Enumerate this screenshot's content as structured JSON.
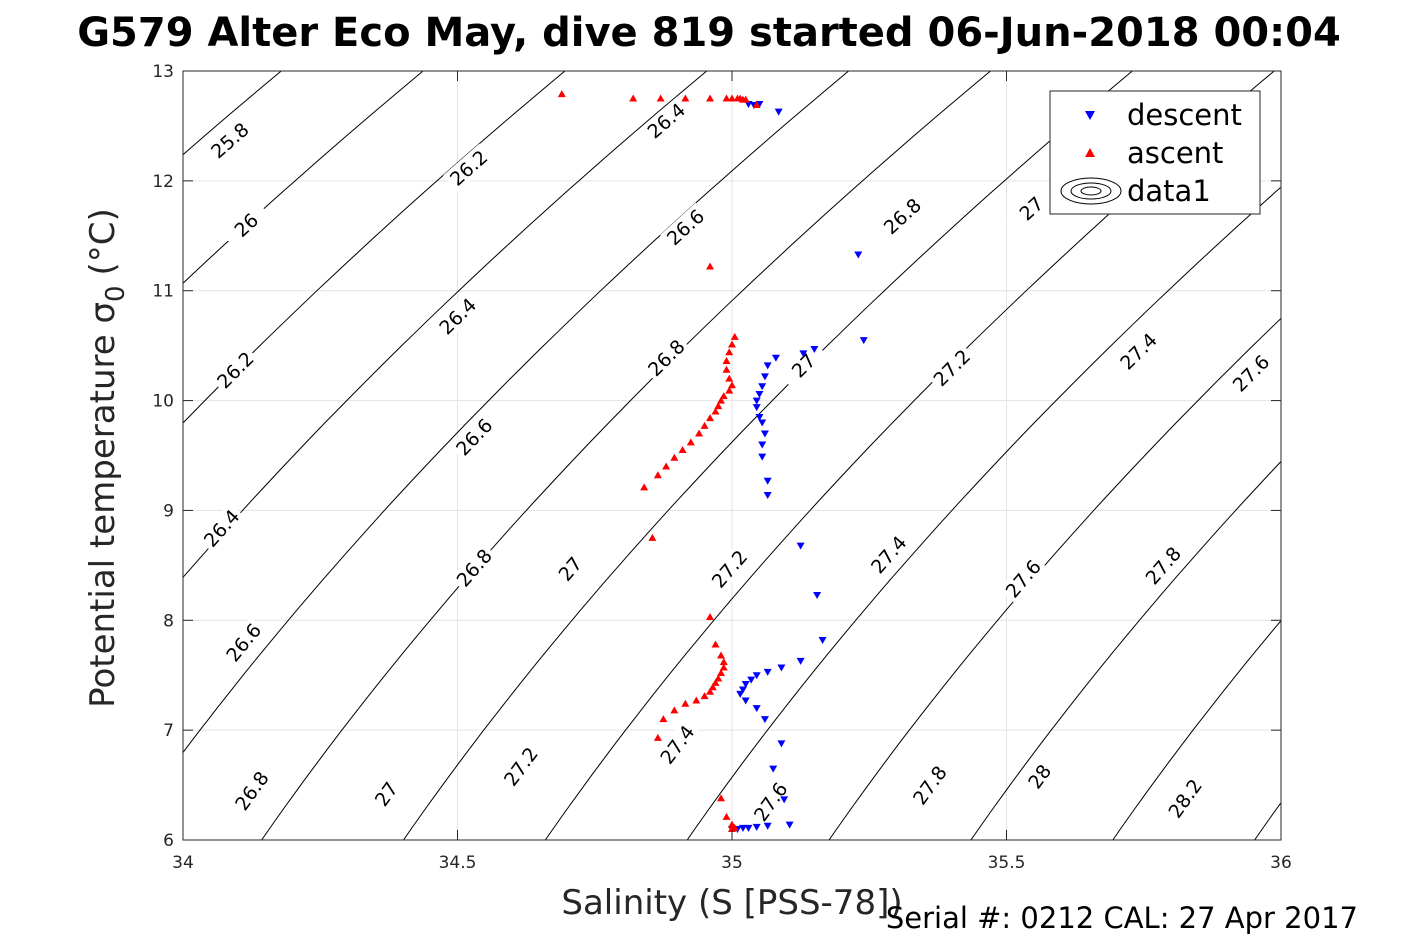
{
  "chart_data": {
    "type": "scatter",
    "title": "G579 Alter Eco May, dive 819 started 06-Jun-2018 00:04",
    "xlabel": "Salinity (S [PSS-78])",
    "ylabel": "Potential temperature σ",
    "ylabel_subscript": "0",
    "ylabel_unit": "(°C)",
    "xlim": [
      34,
      36
    ],
    "ylim": [
      6,
      13
    ],
    "x_ticks": [
      34,
      34.5,
      35,
      35.5,
      36
    ],
    "x_tick_labels": [
      "34",
      "34.5",
      "35",
      "35.5",
      "36"
    ],
    "y_ticks": [
      6,
      7,
      8,
      9,
      10,
      11,
      12,
      13
    ],
    "y_tick_labels": [
      "6",
      "7",
      "8",
      "9",
      "10",
      "11",
      "12",
      "13"
    ],
    "grid": true,
    "legend_position": "top-right",
    "footer": "Serial #: 0212  CAL: 27 Apr 2017",
    "colors": {
      "descent": "#0000ff",
      "ascent": "#ff0000",
      "contour": "#000000",
      "grid": "#e3e3e3"
    },
    "series": [
      {
        "name": "descent",
        "marker": "triangle-down",
        "color": "#0000ff",
        "points": [
          [
            35.03,
            12.7
          ],
          [
            35.04,
            12.69
          ],
          [
            35.05,
            12.7
          ],
          [
            35.085,
            12.63
          ],
          [
            35.23,
            11.33
          ],
          [
            35.24,
            10.55
          ],
          [
            35.15,
            10.47
          ],
          [
            35.13,
            10.43
          ],
          [
            35.08,
            10.39
          ],
          [
            35.065,
            10.32
          ],
          [
            35.06,
            10.22
          ],
          [
            35.055,
            10.13
          ],
          [
            35.05,
            10.06
          ],
          [
            35.045,
            10.0
          ],
          [
            35.045,
            9.94
          ],
          [
            35.05,
            9.85
          ],
          [
            35.055,
            9.8
          ],
          [
            35.06,
            9.7
          ],
          [
            35.055,
            9.6
          ],
          [
            35.055,
            9.49
          ],
          [
            35.065,
            9.27
          ],
          [
            35.065,
            9.14
          ],
          [
            35.125,
            8.68
          ],
          [
            35.155,
            8.23
          ],
          [
            35.165,
            7.82
          ],
          [
            35.125,
            7.63
          ],
          [
            35.09,
            7.57
          ],
          [
            35.065,
            7.53
          ],
          [
            35.045,
            7.5
          ],
          [
            35.035,
            7.46
          ],
          [
            35.025,
            7.42
          ],
          [
            35.02,
            7.37
          ],
          [
            35.015,
            7.33
          ],
          [
            35.025,
            7.27
          ],
          [
            35.045,
            7.2
          ],
          [
            35.06,
            7.1
          ],
          [
            35.09,
            6.88
          ],
          [
            35.075,
            6.65
          ],
          [
            35.095,
            6.37
          ],
          [
            35.105,
            6.14
          ],
          [
            35.065,
            6.13
          ],
          [
            35.045,
            6.12
          ],
          [
            35.03,
            6.11
          ],
          [
            35.02,
            6.11
          ],
          [
            35.01,
            6.1
          ],
          [
            35.0,
            6.1
          ]
        ]
      },
      {
        "name": "ascent",
        "marker": "triangle-up",
        "color": "#ff0000",
        "points": [
          [
            34.69,
            12.79
          ],
          [
            34.82,
            12.75
          ],
          [
            34.87,
            12.75
          ],
          [
            34.915,
            12.75
          ],
          [
            34.96,
            12.75
          ],
          [
            34.99,
            12.75
          ],
          [
            35.0,
            12.75
          ],
          [
            35.01,
            12.75
          ],
          [
            35.015,
            12.75
          ],
          [
            35.02,
            12.74
          ],
          [
            35.025,
            12.74
          ],
          [
            35.045,
            12.69
          ],
          [
            34.96,
            11.22
          ],
          [
            35.005,
            10.58
          ],
          [
            35.0,
            10.51
          ],
          [
            34.995,
            10.44
          ],
          [
            34.99,
            10.36
          ],
          [
            34.99,
            10.28
          ],
          [
            34.995,
            10.2
          ],
          [
            35.0,
            10.14
          ],
          [
            34.995,
            10.09
          ],
          [
            34.985,
            10.04
          ],
          [
            34.98,
            10.0
          ],
          [
            34.975,
            9.95
          ],
          [
            34.97,
            9.9
          ],
          [
            34.96,
            9.84
          ],
          [
            34.95,
            9.77
          ],
          [
            34.94,
            9.7
          ],
          [
            34.925,
            9.62
          ],
          [
            34.91,
            9.55
          ],
          [
            34.895,
            9.48
          ],
          [
            34.88,
            9.4
          ],
          [
            34.865,
            9.32
          ],
          [
            34.84,
            9.21
          ],
          [
            34.855,
            8.75
          ],
          [
            34.96,
            8.03
          ],
          [
            34.97,
            7.78
          ],
          [
            34.98,
            7.68
          ],
          [
            34.985,
            7.62
          ],
          [
            34.985,
            7.57
          ],
          [
            34.98,
            7.52
          ],
          [
            34.975,
            7.47
          ],
          [
            34.97,
            7.43
          ],
          [
            34.965,
            7.39
          ],
          [
            34.96,
            7.35
          ],
          [
            34.95,
            7.31
          ],
          [
            34.935,
            7.27
          ],
          [
            34.915,
            7.24
          ],
          [
            34.895,
            7.18
          ],
          [
            34.875,
            7.1
          ],
          [
            34.865,
            6.93
          ],
          [
            34.98,
            6.38
          ],
          [
            34.99,
            6.21
          ],
          [
            35.0,
            6.14
          ],
          [
            35.005,
            6.11
          ],
          [
            35.0,
            6.1
          ]
        ]
      },
      {
        "name": "data1",
        "marker": "contour",
        "color": "#000000",
        "points": []
      }
    ],
    "contour_levels": [
      25.8,
      26,
      26.2,
      26.4,
      26.6,
      26.8,
      27,
      27.2,
      27.4,
      27.6,
      27.8,
      28,
      28.2
    ],
    "contour_labels": [
      {
        "text": "25.8",
        "x": 34.085,
        "y": 12.37
      },
      {
        "text": "26",
        "x": 34.115,
        "y": 11.6
      },
      {
        "text": "26.2",
        "x": 34.095,
        "y": 10.28
      },
      {
        "text": "26.4",
        "x": 34.07,
        "y": 8.84
      },
      {
        "text": "26.6",
        "x": 34.11,
        "y": 7.8
      },
      {
        "text": "26.8",
        "x": 34.125,
        "y": 6.45
      },
      {
        "text": "26.2",
        "x": 34.52,
        "y": 12.12
      },
      {
        "text": "26.4",
        "x": 34.5,
        "y": 10.77
      },
      {
        "text": "26.6",
        "x": 34.53,
        "y": 9.67
      },
      {
        "text": "26.8",
        "x": 34.53,
        "y": 8.48
      },
      {
        "text": "27",
        "x": 34.37,
        "y": 6.42
      },
      {
        "text": "26.4",
        "x": 34.88,
        "y": 12.55
      },
      {
        "text": "26.6",
        "x": 34.915,
        "y": 11.58
      },
      {
        "text": "26.8",
        "x": 34.88,
        "y": 10.39
      },
      {
        "text": "27",
        "x": 34.705,
        "y": 8.47
      },
      {
        "text": "27.2",
        "x": 34.615,
        "y": 6.67
      },
      {
        "text": "26.8",
        "x": 35.31,
        "y": 11.68
      },
      {
        "text": "27",
        "x": 35.13,
        "y": 10.32
      },
      {
        "text": "27.2",
        "x": 34.995,
        "y": 8.47
      },
      {
        "text": "27.4",
        "x": 34.9,
        "y": 6.87
      },
      {
        "text": "27.2",
        "x": 35.4,
        "y": 10.3
      },
      {
        "text": "27.4",
        "x": 35.285,
        "y": 8.6
      },
      {
        "text": "27.6",
        "x": 35.07,
        "y": 6.35
      },
      {
        "text": "27.4",
        "x": 35.74,
        "y": 10.45
      },
      {
        "text": "27.6",
        "x": 35.53,
        "y": 8.38
      },
      {
        "text": "27.8",
        "x": 35.36,
        "y": 6.5
      },
      {
        "text": "27.6",
        "x": 35.945,
        "y": 10.25
      },
      {
        "text": "27.8",
        "x": 35.785,
        "y": 8.5
      },
      {
        "text": "28",
        "x": 35.56,
        "y": 6.58
      },
      {
        "text": "28.2",
        "x": 35.825,
        "y": 6.38
      },
      {
        "text": "27",
        "x": 35.545,
        "y": 11.75
      }
    ]
  }
}
